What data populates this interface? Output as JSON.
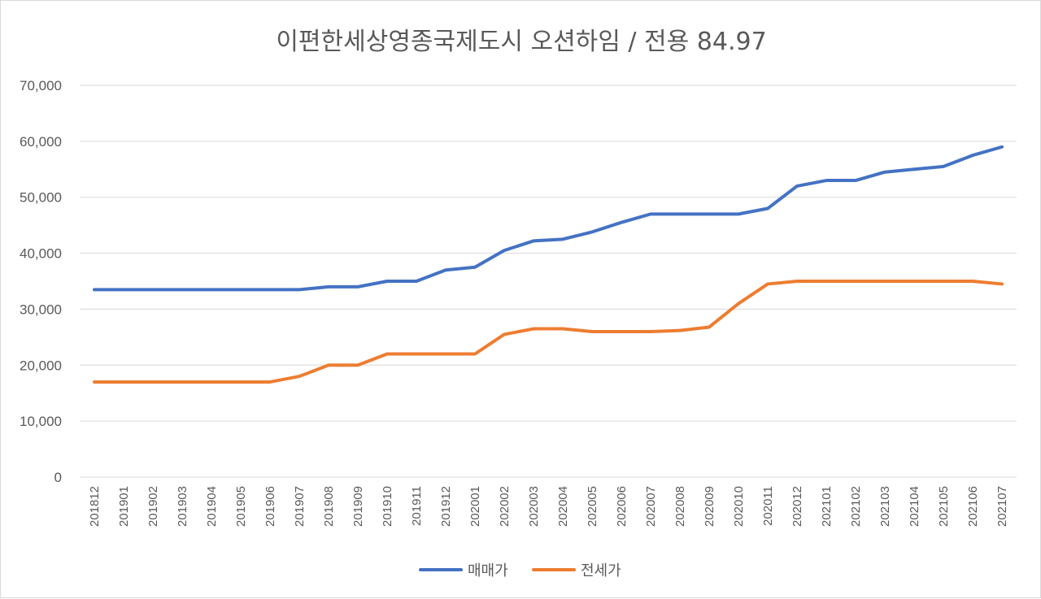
{
  "chart_data": {
    "type": "line",
    "title": "이편한세상영종국제도시 오션하임 / 전용 84.97",
    "xlabel": "",
    "ylabel": "",
    "ylim": [
      0,
      70000
    ],
    "yticks": [
      0,
      10000,
      20000,
      30000,
      40000,
      50000,
      60000,
      70000
    ],
    "ytick_labels": [
      "0",
      "10,000",
      "20,000",
      "30,000",
      "40,000",
      "50,000",
      "60,000",
      "70,000"
    ],
    "grid": true,
    "legend_position": "bottom",
    "categories": [
      "201812",
      "201901",
      "201902",
      "201903",
      "201904",
      "201905",
      "201906",
      "201907",
      "201908",
      "201909",
      "201910",
      "201911",
      "201912",
      "202001",
      "202002",
      "202003",
      "202004",
      "202005",
      "202006",
      "202007",
      "202008",
      "202009",
      "202010",
      "202011",
      "202012",
      "202101",
      "202102",
      "202103",
      "202104",
      "202105",
      "202106",
      "202107"
    ],
    "series": [
      {
        "name": "매매가",
        "color": "#4472c4",
        "values": [
          33500,
          33500,
          33500,
          33500,
          33500,
          33500,
          33500,
          33500,
          34000,
          34000,
          35000,
          35000,
          37000,
          37500,
          40500,
          42200,
          42500,
          43800,
          45500,
          47000,
          47000,
          47000,
          47000,
          48000,
          52000,
          53000,
          53000,
          54500,
          55000,
          55500,
          57500,
          59000
        ]
      },
      {
        "name": "전세가",
        "color": "#ed7d31",
        "values": [
          17000,
          17000,
          17000,
          17000,
          17000,
          17000,
          17000,
          18000,
          20000,
          20000,
          22000,
          22000,
          22000,
          22000,
          25500,
          26500,
          26500,
          26000,
          26000,
          26000,
          26200,
          26800,
          31000,
          34500,
          35000,
          35000,
          35000,
          35000,
          35000,
          35000,
          35000,
          34500
        ]
      }
    ]
  }
}
